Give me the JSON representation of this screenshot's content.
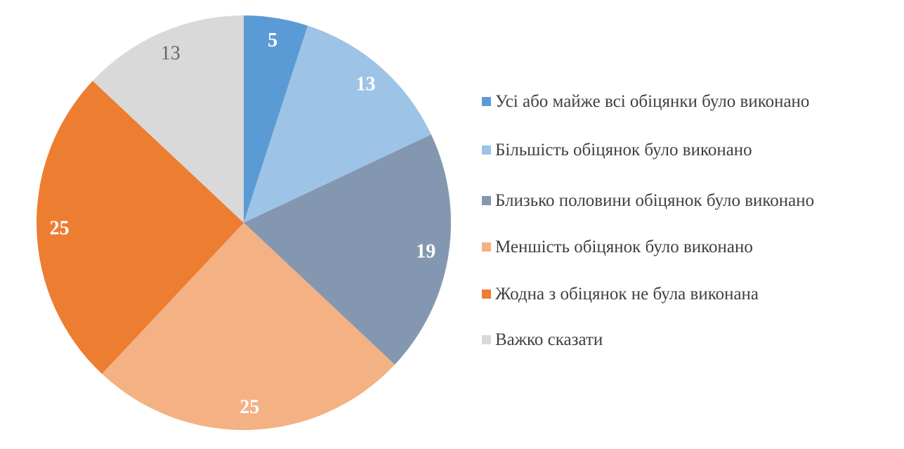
{
  "chart_data": {
    "type": "pie",
    "title": "",
    "legend_position": "right",
    "data_labels": "values shown inside slices",
    "start_angle_deg": 0,
    "direction": "clockwise",
    "total": 100,
    "slices": [
      {
        "label": "Усі або майже всі обіцянки було виконано",
        "value": 5,
        "color": "#5B9BD5",
        "label_color": "#FFFFFF",
        "label_bold": true
      },
      {
        "label": "Більшість обіцянок було виконано",
        "value": 13,
        "color": "#9DC3E6",
        "label_color": "#FFFFFF",
        "label_bold": true
      },
      {
        "label": "Близько половини обіцянок було виконано",
        "value": 19,
        "color": "#8497B0",
        "label_color": "#FFFFFF",
        "label_bold": true
      },
      {
        "label": "Меншість обіцянок було виконано",
        "value": 25,
        "color": "#F4B183",
        "label_color": "#FFFFFF",
        "label_bold": true
      },
      {
        "label": "Жодна з обіцянок не була виконана",
        "value": 25,
        "color": "#ED7D31",
        "label_color": "#FFFFFF",
        "label_bold": true
      },
      {
        "label": "Важко сказати",
        "value": 13,
        "color": "#D9D9D9",
        "label_color": "#666666",
        "label_bold": false
      }
    ]
  }
}
